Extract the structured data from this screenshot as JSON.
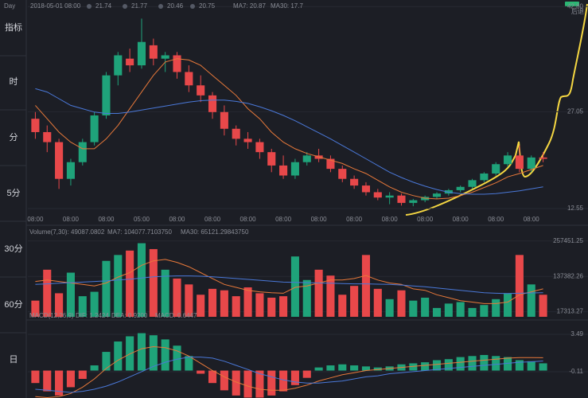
{
  "sidebar": [
    "指标",
    "时",
    "分",
    "5分",
    "30分",
    "60分",
    "日"
  ],
  "chart_data": [
    {
      "type": "candlestick",
      "info": [
        "Day",
        "2018-05-01 08:00",
        "21.74",
        "21.77",
        "20.46",
        "20.75"
      ],
      "right_label": "后退",
      "categories": [
        "08:00",
        null,
        null,
        "08:00",
        null,
        null,
        "08:00",
        null,
        null,
        "05:00",
        null,
        null,
        "08:00",
        null,
        null,
        "08:00",
        null,
        null,
        "08:00",
        null,
        null,
        "08:00",
        null,
        null,
        "08:00",
        null,
        null,
        "08:00",
        null,
        null,
        "08:00",
        null,
        null,
        "08:00",
        null,
        null,
        "08:00",
        null,
        null,
        "08:00",
        null,
        null,
        "08:00",
        null
      ],
      "open": [
        26,
        24,
        22.5,
        17,
        19.5,
        22.5,
        26.5,
        32.5,
        35,
        34,
        37,
        35,
        35.5,
        33,
        31,
        29.5,
        27,
        24.5,
        23,
        22.5,
        21,
        19,
        17.5,
        19.5,
        20.5,
        20,
        18.5,
        17,
        16,
        15,
        14.2,
        14.5,
        13.4,
        13.8,
        14.3,
        14.8,
        15.3,
        15.8,
        16.8,
        17.8,
        19.2,
        20.5,
        18.5,
        20.2
      ],
      "high": [
        27,
        25,
        23,
        20,
        23,
        27,
        33,
        36,
        36.5,
        41,
        38,
        36,
        36,
        34,
        32.5,
        30,
        28,
        25,
        24,
        23,
        21.5,
        20.5,
        20,
        21,
        21.5,
        20.5,
        19,
        17.5,
        16.5,
        15.5,
        15,
        14.8,
        14,
        14.5,
        15,
        15.5,
        16,
        17,
        18,
        19.5,
        21,
        22,
        20.5,
        21
      ],
      "low": [
        23,
        21,
        15.5,
        16,
        19,
        22,
        26,
        31,
        33,
        33.5,
        34,
        33,
        32,
        30,
        28.5,
        26,
        23.5,
        22,
        21.5,
        20,
        18,
        17,
        17,
        19,
        19.5,
        18,
        16.5,
        15.5,
        14.5,
        13.8,
        13.2,
        13,
        12.9,
        13.5,
        14,
        14.5,
        15,
        15.5,
        16.5,
        17.5,
        18.8,
        18,
        18,
        19.5
      ],
      "close": [
        24,
        22.5,
        17,
        19.5,
        22.5,
        26.5,
        32.5,
        35.5,
        34,
        37.5,
        35,
        35.5,
        33,
        31,
        29.5,
        27,
        24.5,
        23,
        22.5,
        21,
        19,
        17.5,
        19.5,
        20.5,
        20,
        18.5,
        17,
        16,
        15,
        14.2,
        14.5,
        13.4,
        13.8,
        14.3,
        14.8,
        15.3,
        15.8,
        16.8,
        17.8,
        19.2,
        20.5,
        18.5,
        20.2,
        20
      ],
      "lines": [
        {
          "label": "MA7: 20.87",
          "color": "#e8793a",
          "values": [
            28,
            26,
            24,
            22.5,
            21.5,
            21.5,
            23,
            25,
            27.5,
            30,
            32.5,
            34.5,
            35,
            34.8,
            34,
            32.5,
            31,
            29.5,
            27.5,
            26,
            24,
            22.5,
            21.5,
            20.8,
            20.3,
            19.8,
            19.3,
            18.5,
            17.8,
            16.8,
            15.8,
            15,
            14.5,
            14.1,
            14,
            14.1,
            14.5,
            15,
            15.7,
            16.4,
            17.3,
            17.8,
            18.4,
            19
          ]
        },
        {
          "label": "MA30: 17.7",
          "color": "#4a78d8",
          "values": [
            30.5,
            30,
            29,
            28,
            27.5,
            27,
            26.8,
            26.8,
            27,
            27.3,
            27.6,
            27.9,
            28.2,
            28.5,
            28.7,
            28.8,
            28.8,
            28.6,
            28.3,
            27.8,
            27.2,
            26.5,
            25.7,
            24.8,
            23.9,
            23,
            22,
            21,
            20,
            19,
            18,
            17.2,
            16.5,
            15.9,
            15.4,
            15,
            14.8,
            14.7,
            14.7,
            14.8,
            15,
            15.2,
            15.5,
            15.8
          ]
        }
      ],
      "ylim": [
        11.6,
        42.83
      ],
      "yticks": [
        {
          "value": 42.8,
          "label": "42.80"
        },
        27.05,
        12.55
      ]
    },
    {
      "type": "bar",
      "title": "Volume(7,30): 49087.0802",
      "values": [
        55000,
        160000,
        80000,
        150000,
        70000,
        85000,
        190000,
        210000,
        225000,
        250000,
        230000,
        160000,
        130000,
        110000,
        75000,
        95000,
        90000,
        70000,
        100000,
        80000,
        65000,
        70000,
        205000,
        125000,
        160000,
        140000,
        75000,
        105000,
        210000,
        95000,
        60000,
        90000,
        55000,
        65000,
        30000,
        45000,
        50000,
        30000,
        40000,
        60000,
        80000,
        210000,
        110000,
        75000
      ],
      "lines": [
        {
          "label": "MA7: 104077.7103750",
          "color": "#e8793a",
          "values": [
            120000,
            125000,
            120000,
            115000,
            110000,
            105000,
            115000,
            135000,
            150000,
            175000,
            190000,
            195000,
            185000,
            170000,
            150000,
            130000,
            110000,
            100000,
            90000,
            85000,
            82000,
            80000,
            100000,
            105000,
            115000,
            125000,
            125000,
            130000,
            140000,
            125000,
            115000,
            110000,
            95000,
            90000,
            75000,
            65000,
            55000,
            50000,
            45000,
            45000,
            50000,
            75000,
            85000,
            95000
          ]
        },
        {
          "label": "MA30: 65121.29843750",
          "color": "#4a78d8",
          "values": [
            110000,
            112000,
            114000,
            116000,
            118000,
            120000,
            122000,
            125000,
            128000,
            132000,
            136000,
            138000,
            139000,
            139000,
            138000,
            136000,
            133000,
            130000,
            127000,
            124000,
            121000,
            118000,
            117000,
            116000,
            115000,
            114000,
            113000,
            112000,
            112000,
            111000,
            110000,
            108000,
            105000,
            102000,
            98000,
            94000,
            90000,
            86000,
            82000,
            80000,
            79000,
            80000,
            81000,
            82000
          ]
        }
      ],
      "ylim": [
        0,
        265000
      ],
      "yticks": [
        257451.25,
        137382.26,
        17313.27
      ]
    },
    {
      "type": "macd",
      "title": "MACD(12,26,9)",
      "label": "MACD: 0.6447",
      "values": [
        -1.2,
        -2.0,
        -2.4,
        -1.6,
        -0.8,
        0.5,
        1.8,
        2.8,
        3.3,
        3.6,
        3.4,
        3.0,
        2.4,
        1.4,
        -0.3,
        -1.2,
        -1.9,
        -2.4,
        -2.6,
        -2.6,
        -2.4,
        -2.0,
        -1.4,
        -0.7,
        0.3,
        0.5,
        0.6,
        0.5,
        0.4,
        0.3,
        0.4,
        0.6,
        0.7,
        0.8,
        1.0,
        1.1,
        1.3,
        1.4,
        1.5,
        1.4,
        1.3,
        1.0,
        0.9,
        0.7
      ],
      "lines": [
        {
          "label": "DIF: 1.2424",
          "color": "#e8793a",
          "values": [
            -2.5,
            -2.6,
            -2.5,
            -2.2,
            -1.6,
            -0.8,
            0.2,
            1.0,
            1.6,
            2.1,
            2.3,
            2.2,
            1.9,
            1.4,
            0.7,
            0,
            -0.6,
            -1.1,
            -1.5,
            -1.8,
            -1.9,
            -1.9,
            -1.7,
            -1.4,
            -1.0,
            -0.7,
            -0.4,
            -0.2,
            0,
            0.1,
            0.2,
            0.3,
            0.4,
            0.5,
            0.6,
            0.7,
            0.8,
            0.9,
            1.0,
            1.1,
            1.2,
            1.25,
            1.25,
            1.24
          ]
        },
        {
          "label": "DEA: 0.9200",
          "color": "#4a78d8",
          "values": [
            -1.8,
            -1.9,
            -2.0,
            -2.1,
            -2.0,
            -1.8,
            -1.5,
            -1.1,
            -0.6,
            -0.1,
            0.4,
            0.8,
            1.1,
            1.3,
            1.3,
            1.2,
            0.9,
            0.5,
            0.1,
            -0.3,
            -0.6,
            -0.9,
            -1.1,
            -1.2,
            -1.2,
            -1.1,
            -1.0,
            -0.8,
            -0.6,
            -0.5,
            -0.3,
            -0.2,
            -0.1,
            0,
            0.1,
            0.2,
            0.3,
            0.4,
            0.5,
            0.6,
            0.7,
            0.8,
            0.85,
            0.92
          ]
        }
      ],
      "ylim": [
        -2.64,
        4.64
      ],
      "yticks": [
        3.49,
        -0.11
      ]
    }
  ]
}
